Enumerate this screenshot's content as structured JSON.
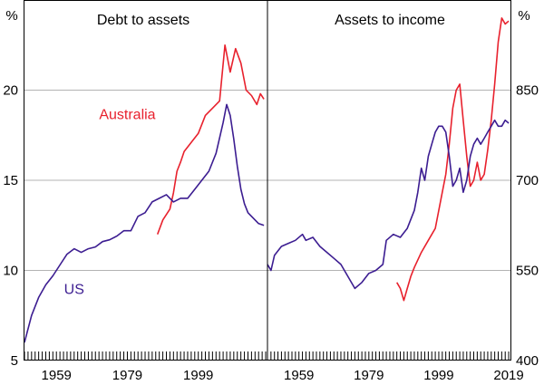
{
  "colors": {
    "australia": "#e8212d",
    "us": "#3c1d91",
    "grid": "#b3b3b3",
    "axis": "#000000"
  },
  "chart_data": [
    {
      "type": "line",
      "title": "Debt to assets",
      "unit_label": "%",
      "xlim": [
        1950,
        2018.5
      ],
      "ylim": [
        5,
        25
      ],
      "yticks": [
        "5",
        "10",
        "15",
        "20"
      ],
      "ytick_values": [
        5,
        10,
        15,
        20
      ],
      "xticks": [
        "1959",
        "1979",
        "1999"
      ],
      "xtick_values": [
        1959,
        1979,
        1999
      ],
      "grid": true,
      "series": [
        {
          "name": "Australia",
          "color": "#e8212d",
          "points": [
            [
              1987.5,
              12.0
            ],
            [
              1989,
              12.8
            ],
            [
              1991,
              13.4
            ],
            [
              1992,
              14.3
            ],
            [
              1993,
              15.5
            ],
            [
              1994,
              16.0
            ],
            [
              1995,
              16.6
            ],
            [
              1997,
              17.1
            ],
            [
              1999,
              17.6
            ],
            [
              2001,
              18.6
            ],
            [
              2003,
              19.0
            ],
            [
              2005,
              19.4
            ],
            [
              2006.5,
              22.5
            ],
            [
              2008,
              21.0
            ],
            [
              2009.5,
              22.3
            ],
            [
              2011,
              21.5
            ],
            [
              2012.5,
              20.0
            ],
            [
              2014,
              19.7
            ],
            [
              2015.5,
              19.2
            ],
            [
              2016.5,
              19.8
            ],
            [
              2017.5,
              19.5
            ]
          ]
        },
        {
          "name": "US",
          "color": "#3c1d91",
          "points": [
            [
              1950,
              6.0
            ],
            [
              1952,
              7.5
            ],
            [
              1954,
              8.5
            ],
            [
              1956,
              9.2
            ],
            [
              1958,
              9.7
            ],
            [
              1960,
              10.3
            ],
            [
              1962,
              10.9
            ],
            [
              1964,
              11.2
            ],
            [
              1966,
              11.0
            ],
            [
              1968,
              11.2
            ],
            [
              1970,
              11.3
            ],
            [
              1972,
              11.6
            ],
            [
              1974,
              11.7
            ],
            [
              1976,
              11.9
            ],
            [
              1978,
              12.2
            ],
            [
              1980,
              12.2
            ],
            [
              1982,
              13.0
            ],
            [
              1984,
              13.2
            ],
            [
              1986,
              13.8
            ],
            [
              1988,
              14.0
            ],
            [
              1990,
              14.2
            ],
            [
              1992,
              13.8
            ],
            [
              1994,
              14.0
            ],
            [
              1996,
              14.0
            ],
            [
              1998,
              14.5
            ],
            [
              2000,
              15.0
            ],
            [
              2002,
              15.5
            ],
            [
              2004,
              16.5
            ],
            [
              2006,
              18.2
            ],
            [
              2007,
              19.2
            ],
            [
              2008,
              18.6
            ],
            [
              2009,
              17.3
            ],
            [
              2010,
              15.8
            ],
            [
              2011,
              14.5
            ],
            [
              2012,
              13.7
            ],
            [
              2013,
              13.2
            ],
            [
              2014,
              13.0
            ],
            [
              2016,
              12.6
            ],
            [
              2017.5,
              12.5
            ]
          ]
        }
      ],
      "annotations": [
        {
          "text": "Australia",
          "series": "Australia",
          "x": 1979,
          "y": 18.4
        },
        {
          "text": "US",
          "series": "US",
          "x": 1964,
          "y": 8.7
        }
      ]
    },
    {
      "type": "line",
      "title": "Assets to income",
      "unit_label": "%",
      "xlim": [
        1950,
        2019.5
      ],
      "ylim": [
        400,
        1000
      ],
      "yticks": [
        "400",
        "550",
        "700",
        "850"
      ],
      "ytick_values": [
        400,
        550,
        700,
        850
      ],
      "xticks": [
        "1959",
        "1979",
        "1999",
        "2019"
      ],
      "xtick_values": [
        1959,
        1979,
        1999,
        2019
      ],
      "grid": true,
      "series": [
        {
          "name": "Australia",
          "color": "#e8212d",
          "points": [
            [
              1987,
              530
            ],
            [
              1988,
              520
            ],
            [
              1989,
              500
            ],
            [
              1990,
              520
            ],
            [
              1991,
              540
            ],
            [
              1992,
              555
            ],
            [
              1994,
              580
            ],
            [
              1996,
              600
            ],
            [
              1998,
              620
            ],
            [
              2000,
              680
            ],
            [
              2001,
              710
            ],
            [
              2002,
              760
            ],
            [
              2003,
              820
            ],
            [
              2004,
              850
            ],
            [
              2005,
              860
            ],
            [
              2006,
              800
            ],
            [
              2007,
              740
            ],
            [
              2008,
              690
            ],
            [
              2009,
              700
            ],
            [
              2010,
              730
            ],
            [
              2011,
              700
            ],
            [
              2012,
              710
            ],
            [
              2013,
              750
            ],
            [
              2014,
              800
            ],
            [
              2015,
              860
            ],
            [
              2016,
              930
            ],
            [
              2017,
              970
            ],
            [
              2018,
              960
            ],
            [
              2019,
              965
            ]
          ]
        },
        {
          "name": "US",
          "color": "#3c1d91",
          "points": [
            [
              1950,
              560
            ],
            [
              1951,
              550
            ],
            [
              1952,
              575
            ],
            [
              1954,
              590
            ],
            [
              1956,
              595
            ],
            [
              1958,
              600
            ],
            [
              1960,
              610
            ],
            [
              1961,
              600
            ],
            [
              1963,
              605
            ],
            [
              1965,
              590
            ],
            [
              1967,
              580
            ],
            [
              1969,
              570
            ],
            [
              1971,
              560
            ],
            [
              1973,
              540
            ],
            [
              1975,
              520
            ],
            [
              1977,
              530
            ],
            [
              1979,
              545
            ],
            [
              1981,
              550
            ],
            [
              1983,
              560
            ],
            [
              1984,
              600
            ],
            [
              1986,
              610
            ],
            [
              1988,
              605
            ],
            [
              1990,
              620
            ],
            [
              1992,
              650
            ],
            [
              1993,
              680
            ],
            [
              1994,
              720
            ],
            [
              1995,
              700
            ],
            [
              1996,
              740
            ],
            [
              1997,
              760
            ],
            [
              1998,
              780
            ],
            [
              1999,
              790
            ],
            [
              2000,
              790
            ],
            [
              2001,
              780
            ],
            [
              2002,
              740
            ],
            [
              2003,
              690
            ],
            [
              2004,
              700
            ],
            [
              2005,
              720
            ],
            [
              2006,
              680
            ],
            [
              2007,
              700
            ],
            [
              2008,
              740
            ],
            [
              2009,
              760
            ],
            [
              2010,
              770
            ],
            [
              2011,
              760
            ],
            [
              2012,
              770
            ],
            [
              2013,
              780
            ],
            [
              2014,
              790
            ],
            [
              2015,
              800
            ],
            [
              2016,
              790
            ],
            [
              2017,
              790
            ],
            [
              2018,
              800
            ],
            [
              2019,
              795
            ]
          ]
        }
      ]
    }
  ]
}
